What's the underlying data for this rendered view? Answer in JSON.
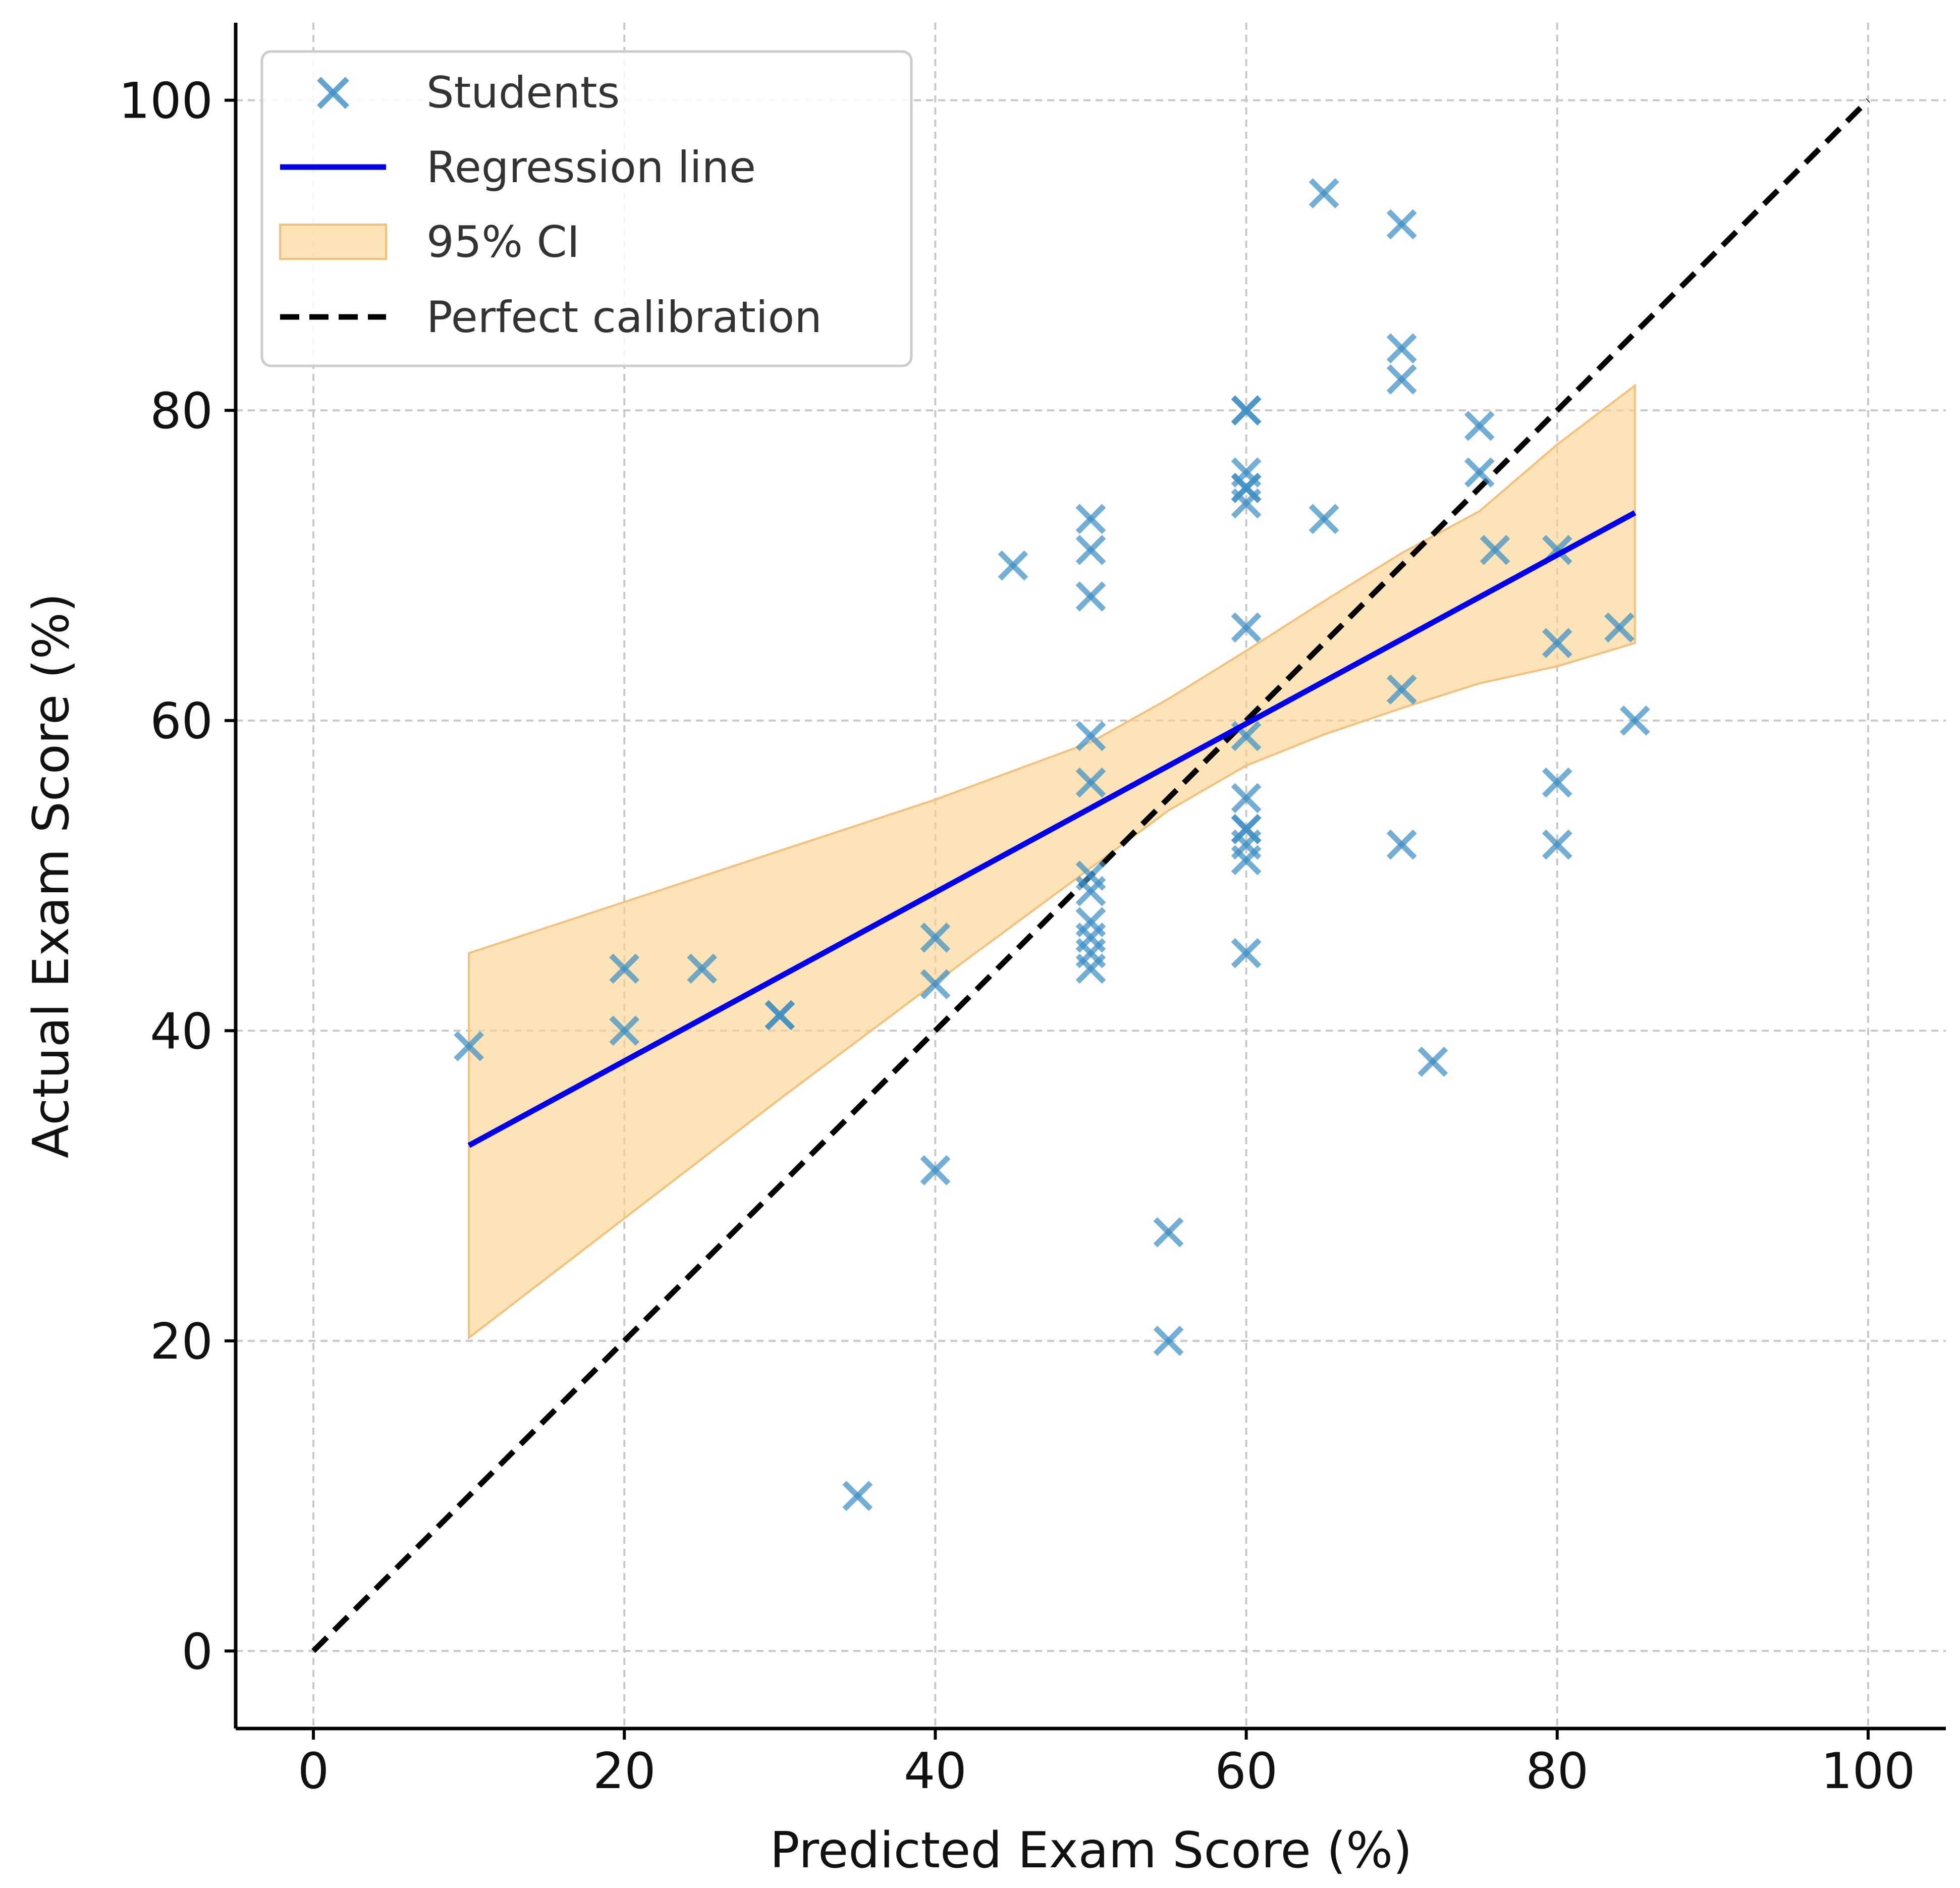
{
  "chart_data": {
    "type": "scatter",
    "title": "",
    "xlabel": "Predicted Exam Score (%)",
    "ylabel": "Actual Exam Score (%)",
    "xlim": [
      -5,
      105
    ],
    "ylim": [
      -5,
      105
    ],
    "grid": true,
    "legend_position": "top-left",
    "x_ticks": [
      0,
      20,
      40,
      60,
      80,
      100
    ],
    "y_ticks": [
      0,
      20,
      40,
      60,
      80,
      100
    ],
    "x_tick_labels": [
      "0",
      "20",
      "40",
      "60",
      "80",
      "100"
    ],
    "y_tick_labels": [
      "0",
      "20",
      "40",
      "60",
      "80",
      "100"
    ],
    "legend": {
      "students": "Students",
      "regression": "Regression line",
      "ci": "95% CI",
      "calibration": "Perfect calibration"
    },
    "colors": {
      "students": "#3d8fc4",
      "regression": "#0000ee",
      "ci_fill": "#fbd592",
      "ci_edge": "#f7c07a",
      "calibration": "#000000",
      "grid": "#c8c8c8"
    },
    "students": {
      "name": "Students",
      "x": [
        10,
        20,
        20,
        25,
        30,
        30,
        35,
        40,
        40,
        40,
        45,
        50,
        50,
        50,
        50,
        50,
        50,
        50,
        50,
        50,
        50,
        50,
        55,
        55,
        60,
        60,
        60,
        60,
        60,
        60,
        60,
        60,
        60,
        60,
        60,
        60,
        60,
        60,
        65,
        65,
        70,
        70,
        70,
        70,
        70,
        72,
        75,
        75,
        76,
        80,
        80,
        80,
        80,
        84,
        85
      ],
      "y": [
        39,
        44,
        40,
        44,
        41,
        41,
        10,
        46,
        43,
        31,
        70,
        73,
        71,
        68,
        59,
        56,
        49,
        47,
        46,
        44,
        45,
        50,
        27,
        20,
        80,
        80,
        76,
        75,
        75,
        74,
        66,
        59,
        55,
        53,
        53,
        51,
        45,
        52,
        94,
        73,
        92,
        84,
        82,
        62,
        52,
        38,
        79,
        76,
        71,
        71,
        65,
        56,
        52,
        66,
        60
      ]
    },
    "regression": {
      "name": "Regression line",
      "x": [
        10,
        85
      ],
      "y": [
        32.6,
        73.4
      ]
    },
    "ci_band": {
      "name": "95% CI",
      "x": [
        10,
        20,
        30,
        40,
        50,
        55,
        60,
        65,
        70,
        75,
        80,
        85
      ],
      "upper": [
        45.0,
        48.3,
        51.6,
        54.9,
        58.6,
        61.4,
        64.5,
        67.7,
        70.8,
        73.5,
        77.8,
        81.6
      ],
      "lower": [
        20.2,
        27.9,
        35.6,
        43.1,
        50.5,
        54.2,
        57.1,
        59.1,
        60.8,
        62.4,
        63.5,
        65.0
      ]
    },
    "calibration": {
      "name": "Perfect calibration",
      "x": [
        0,
        100
      ],
      "y": [
        0,
        100
      ]
    }
  }
}
